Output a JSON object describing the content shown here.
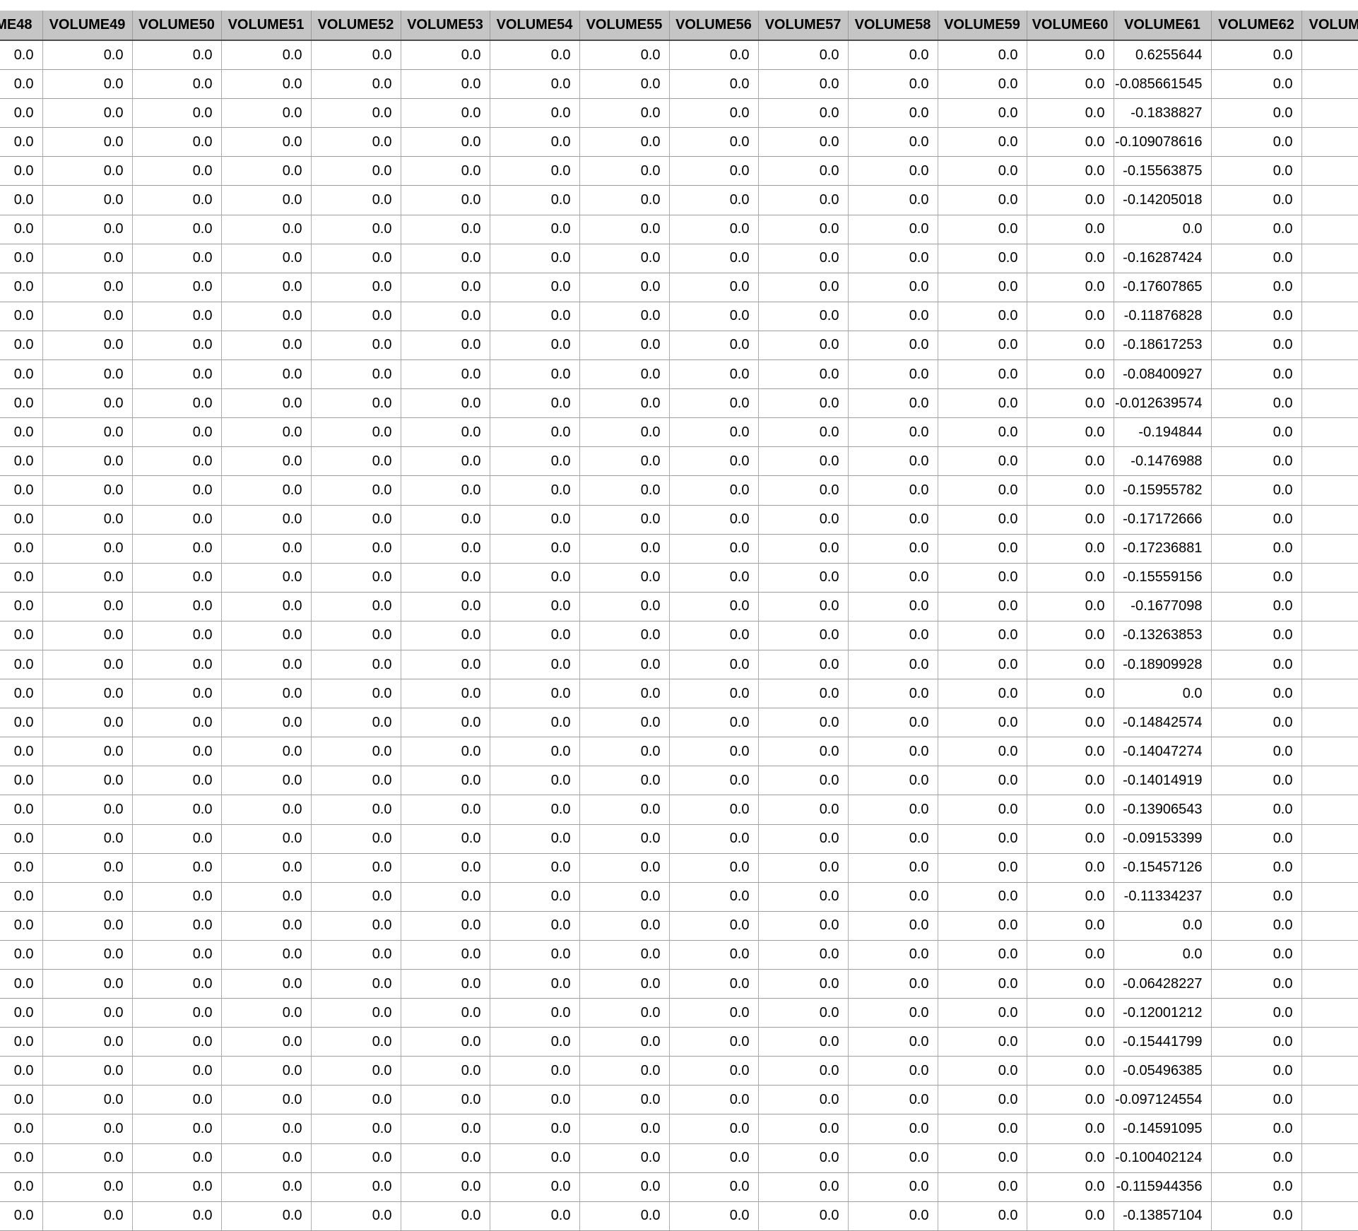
{
  "table": {
    "headers": [
      "ME48",
      "VOLUME49",
      "VOLUME50",
      "VOLUME51",
      "VOLUME52",
      "VOLUME53",
      "VOLUME54",
      "VOLUME55",
      "VOLUME56",
      "VOLUME57",
      "VOLUME58",
      "VOLUME59",
      "VOLUME60",
      "VOLUME61",
      "VOLUME62",
      "VOLUM"
    ],
    "volume61_column_header": "VOLUME61",
    "volume61_values": [
      "0.6255644",
      "-0.085661545",
      "-0.1838827",
      "-0.109078616",
      "-0.15563875",
      "-0.14205018",
      "0.0",
      "-0.16287424",
      "-0.17607865",
      "-0.11876828",
      "-0.18617253",
      "-0.08400927",
      "-0.012639574",
      "-0.194844",
      "-0.1476988",
      "-0.15955782",
      "-0.17172666",
      "-0.17236881",
      "-0.15559156",
      "-0.1677098",
      "-0.13263853",
      "-0.18909928",
      "0.0",
      "-0.14842574",
      "-0.14047274",
      "-0.14014919",
      "-0.13906543",
      "-0.09153399",
      "-0.15457126",
      "-0.11334237",
      "0.0",
      "0.0",
      "-0.06428227",
      "-0.12001212",
      "-0.15441799",
      "-0.05496385",
      "-0.097124554",
      "-0.14591095",
      "-0.100402124",
      "-0.115944356",
      "-0.13857104"
    ],
    "default_cell_value": "0.0",
    "last_column_cell_value": "",
    "row_count_visible": 41
  },
  "colors": {
    "header_background": "#c5c5c5",
    "header_separator": "#9c9c9c",
    "header_bottom_border": "#4d4d4d",
    "grid_line_vertical": "#adadad",
    "grid_line_horizontal": "#9e9e9e",
    "text": "#000000",
    "background": "#ffffff"
  }
}
